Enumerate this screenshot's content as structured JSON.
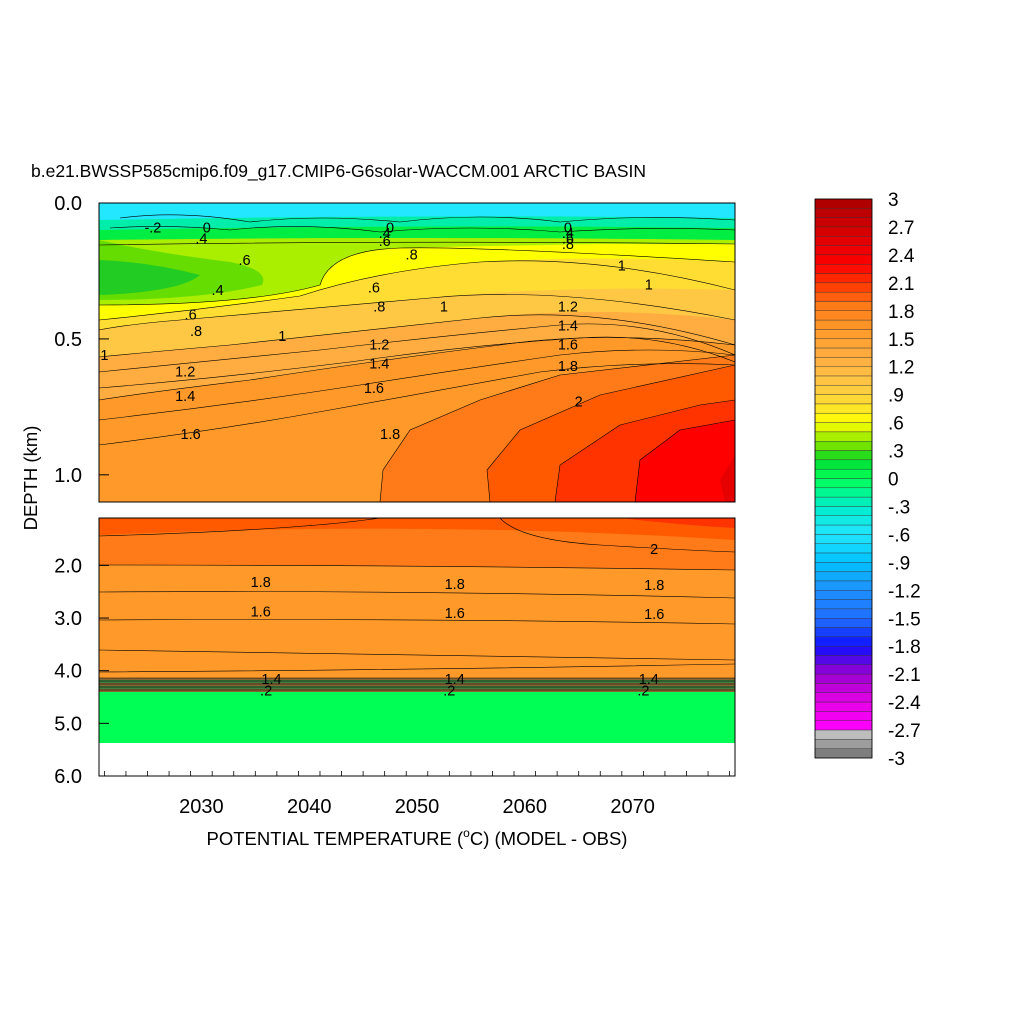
{
  "chart_data": {
    "type": "heatmap",
    "subtype": "filled-contour",
    "title": "b.e21.BWSSP585cmip6.f09_g17.CMIP6-G6solar-WACCM.001 ARCTIC BASIN",
    "xlabel_pre": "POTENTIAL TEMPERATURE (",
    "xlabel_sup": "o",
    "xlabel_post": "C) (MODEL - OBS)",
    "ylabel": "DEPTH (km)",
    "x_range": [
      2020.5,
      2079.5
    ],
    "x_ticks": [
      "2030",
      "2040",
      "2050",
      "2060",
      "2070"
    ],
    "x_tick_values": [
      2030,
      2040,
      2050,
      2060,
      2070
    ],
    "upper_panel": {
      "depth_range_km": [
        0.0,
        1.1
      ],
      "y_ticks": [
        "0.0",
        "0.5",
        "1.0"
      ],
      "y_tick_values": [
        0.0,
        0.5,
        1.0
      ]
    },
    "lower_panel": {
      "depth_range_km": [
        1.1,
        6.0
      ],
      "y_ticks": [
        "2.0",
        "3.0",
        "4.0",
        "5.0",
        "6.0"
      ],
      "y_tick_values": [
        2.0,
        3.0,
        4.0,
        5.0,
        6.0
      ]
    },
    "contour_labels": [
      {
        "text": "-.2",
        "x": 2025.5,
        "depth": 0.09
      },
      {
        "text": "0",
        "x": 2030.5,
        "depth": 0.09
      },
      {
        "text": ".4",
        "x": 2030.0,
        "depth": 0.13
      },
      {
        "text": ".6",
        "x": 2034.0,
        "depth": 0.21
      },
      {
        "text": ".4",
        "x": 2031.5,
        "depth": 0.32
      },
      {
        "text": ".6",
        "x": 2029.0,
        "depth": 0.41
      },
      {
        "text": ".8",
        "x": 2029.5,
        "depth": 0.47
      },
      {
        "text": "1",
        "x": 2021.0,
        "depth": 0.56
      },
      {
        "text": "1",
        "x": 2037.5,
        "depth": 0.49
      },
      {
        "text": "1.2",
        "x": 2028.5,
        "depth": 0.62
      },
      {
        "text": "1.4",
        "x": 2028.5,
        "depth": 0.71
      },
      {
        "text": "1.6",
        "x": 2029.0,
        "depth": 0.85
      },
      {
        "text": "0",
        "x": 2047.5,
        "depth": 0.09
      },
      {
        "text": ".4",
        "x": 2047.0,
        "depth": 0.11
      },
      {
        "text": ".6",
        "x": 2047.0,
        "depth": 0.14
      },
      {
        "text": ".8",
        "x": 2049.5,
        "depth": 0.19
      },
      {
        "text": ".6",
        "x": 2046.0,
        "depth": 0.31
      },
      {
        "text": ".8",
        "x": 2046.5,
        "depth": 0.38
      },
      {
        "text": "1.2",
        "x": 2046.5,
        "depth": 0.52
      },
      {
        "text": "1.4",
        "x": 2046.5,
        "depth": 0.59
      },
      {
        "text": "1.6",
        "x": 2046.0,
        "depth": 0.68
      },
      {
        "text": "1.8",
        "x": 2047.5,
        "depth": 0.85
      },
      {
        "text": "1",
        "x": 2052.5,
        "depth": 0.38
      },
      {
        "text": "0",
        "x": 2064.0,
        "depth": 0.09
      },
      {
        "text": ".4",
        "x": 2064.0,
        "depth": 0.11
      },
      {
        "text": ".6",
        "x": 2064.0,
        "depth": 0.13
      },
      {
        "text": ".8",
        "x": 2064.0,
        "depth": 0.15
      },
      {
        "text": "1",
        "x": 2069.0,
        "depth": 0.23
      },
      {
        "text": "1",
        "x": 2071.5,
        "depth": 0.3
      },
      {
        "text": "1.2",
        "x": 2064.0,
        "depth": 0.38
      },
      {
        "text": "1.4",
        "x": 2064.0,
        "depth": 0.45
      },
      {
        "text": "1.6",
        "x": 2064.0,
        "depth": 0.52
      },
      {
        "text": "1.8",
        "x": 2064.0,
        "depth": 0.6
      },
      {
        "text": "2",
        "x": 2065.0,
        "depth": 0.73
      },
      {
        "text": "2",
        "x": 2072.0,
        "depth": 1.69
      },
      {
        "text": "1.8",
        "x": 2035.5,
        "depth": 2.32
      },
      {
        "text": "1.6",
        "x": 2035.5,
        "depth": 2.88
      },
      {
        "text": "1.8",
        "x": 2053.5,
        "depth": 2.35
      },
      {
        "text": "1.6",
        "x": 2053.5,
        "depth": 2.9
      },
      {
        "text": "1.8",
        "x": 2072.0,
        "depth": 2.37
      },
      {
        "text": "1.6",
        "x": 2072.0,
        "depth": 2.92
      },
      {
        "text": "1.4",
        "x": 2036.5,
        "depth": 4.16
      },
      {
        "text": ".2",
        "x": 2036.0,
        "depth": 4.38
      },
      {
        "text": "1.4",
        "x": 2053.5,
        "depth": 4.16
      },
      {
        "text": ".2",
        "x": 2053.0,
        "depth": 4.38
      },
      {
        "text": "1.4",
        "x": 2071.5,
        "depth": 4.16
      },
      {
        "text": ".2",
        "x": 2071.0,
        "depth": 4.38
      }
    ],
    "colorbar": {
      "min": -3,
      "max": 3,
      "step": 0.1,
      "labels": [
        "3",
        "2.7",
        "2.4",
        "2.1",
        "1.8",
        "1.5",
        "1.2",
        ".9",
        ".6",
        ".3",
        "0",
        "-.3",
        "-.6",
        "-.9",
        "-1.2",
        "-1.5",
        "-1.8",
        "-2.1",
        "-2.4",
        "-2.7",
        "-3"
      ],
      "label_values": [
        3,
        2.7,
        2.4,
        2.1,
        1.8,
        1.5,
        1.2,
        0.9,
        0.6,
        0.3,
        0,
        -0.3,
        -0.6,
        -0.9,
        -1.2,
        -1.5,
        -1.8,
        -2.1,
        -2.4,
        -2.7,
        -3
      ],
      "stops": [
        {
          "v": -3.0,
          "c": "#6e6e6e"
        },
        {
          "v": -2.75,
          "c": "#bdbdbd"
        },
        {
          "v": -2.7,
          "c": "#ff00ff"
        },
        {
          "v": -2.4,
          "c": "#e600e6"
        },
        {
          "v": -2.1,
          "c": "#9a00d0"
        },
        {
          "v": -1.8,
          "c": "#1010ff"
        },
        {
          "v": -1.5,
          "c": "#1f6fff"
        },
        {
          "v": -1.2,
          "c": "#1e90ff"
        },
        {
          "v": -0.9,
          "c": "#00c2ff"
        },
        {
          "v": -0.6,
          "c": "#23e6ff"
        },
        {
          "v": -0.3,
          "c": "#00eecc"
        },
        {
          "v": 0.0,
          "c": "#00ff55"
        },
        {
          "v": 0.2,
          "c": "#00dd33"
        },
        {
          "v": 0.3,
          "c": "#55dd00"
        },
        {
          "v": 0.45,
          "c": "#aaee00"
        },
        {
          "v": 0.6,
          "c": "#ffff00"
        },
        {
          "v": 0.8,
          "c": "#ffdd33"
        },
        {
          "v": 1.0,
          "c": "#ffc844"
        },
        {
          "v": 1.3,
          "c": "#ffad40"
        },
        {
          "v": 1.6,
          "c": "#ff9a2a"
        },
        {
          "v": 1.85,
          "c": "#ff7a18"
        },
        {
          "v": 2.1,
          "c": "#ff3300"
        },
        {
          "v": 2.3,
          "c": "#ff0000"
        },
        {
          "v": 2.6,
          "c": "#dd0000"
        },
        {
          "v": 3.0,
          "c": "#aa0000"
        }
      ]
    }
  }
}
